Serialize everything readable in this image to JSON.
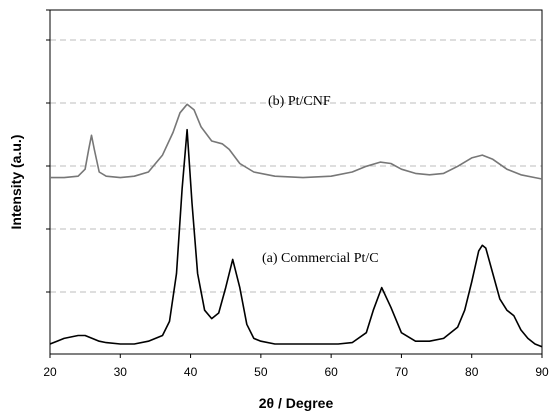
{
  "chart_data": {
    "type": "line",
    "xlabel": "2θ  / Degree",
    "ylabel": "Intensity (a.u.)",
    "xlim": [
      20,
      90
    ],
    "xticks": [
      20,
      30,
      40,
      50,
      60,
      70,
      80,
      90
    ],
    "yticks_labeled": false,
    "grid": "horizontal-dashed",
    "legend": "none",
    "series": [
      {
        "label": "(b) Pt/CNF",
        "color": "#777777",
        "x": [
          20,
          22,
          24,
          25,
          25.5,
          25.9,
          26.3,
          27,
          28,
          30,
          32,
          34,
          36,
          37.5,
          38.5,
          39.5,
          40.5,
          41.5,
          43,
          44.5,
          45.5,
          47,
          49,
          52,
          56,
          60,
          63,
          65,
          67,
          68.5,
          70,
          72,
          74,
          76,
          78,
          80,
          81.5,
          83,
          85,
          87,
          89,
          90
        ],
        "y": [
          0.59,
          0.59,
          0.595,
          0.62,
          0.69,
          0.74,
          0.69,
          0.61,
          0.595,
          0.59,
          0.595,
          0.61,
          0.67,
          0.75,
          0.82,
          0.85,
          0.83,
          0.77,
          0.72,
          0.71,
          0.69,
          0.64,
          0.61,
          0.595,
          0.59,
          0.595,
          0.61,
          0.63,
          0.645,
          0.64,
          0.62,
          0.605,
          0.6,
          0.605,
          0.63,
          0.66,
          0.67,
          0.655,
          0.62,
          0.6,
          0.59,
          0.585
        ]
      },
      {
        "label": "(a)  Commercial Pt/C",
        "color": "#000000",
        "x": [
          20,
          21,
          22,
          24,
          25,
          26,
          27,
          28,
          30,
          32,
          34,
          36,
          37,
          38,
          38.8,
          39.5,
          40.2,
          41,
          42,
          43,
          44,
          45,
          46,
          47,
          48,
          49,
          50,
          52,
          55,
          58,
          61,
          63,
          65,
          66,
          67.2,
          68.5,
          70,
          72,
          74,
          76,
          78,
          79,
          80,
          81,
          81.5,
          82,
          83,
          84,
          85,
          86,
          87,
          88,
          89,
          90
        ],
        "y": [
          0.0,
          0.01,
          0.02,
          0.03,
          0.03,
          0.02,
          0.01,
          0.005,
          0.0,
          0.0,
          0.01,
          0.03,
          0.08,
          0.25,
          0.55,
          0.76,
          0.5,
          0.25,
          0.12,
          0.09,
          0.11,
          0.2,
          0.3,
          0.2,
          0.07,
          0.02,
          0.01,
          0.0,
          0.0,
          0.0,
          0.0,
          0.005,
          0.04,
          0.12,
          0.2,
          0.13,
          0.04,
          0.01,
          0.01,
          0.02,
          0.06,
          0.12,
          0.22,
          0.33,
          0.35,
          0.34,
          0.25,
          0.16,
          0.12,
          0.1,
          0.05,
          0.02,
          0.0,
          -0.01
        ]
      }
    ]
  }
}
